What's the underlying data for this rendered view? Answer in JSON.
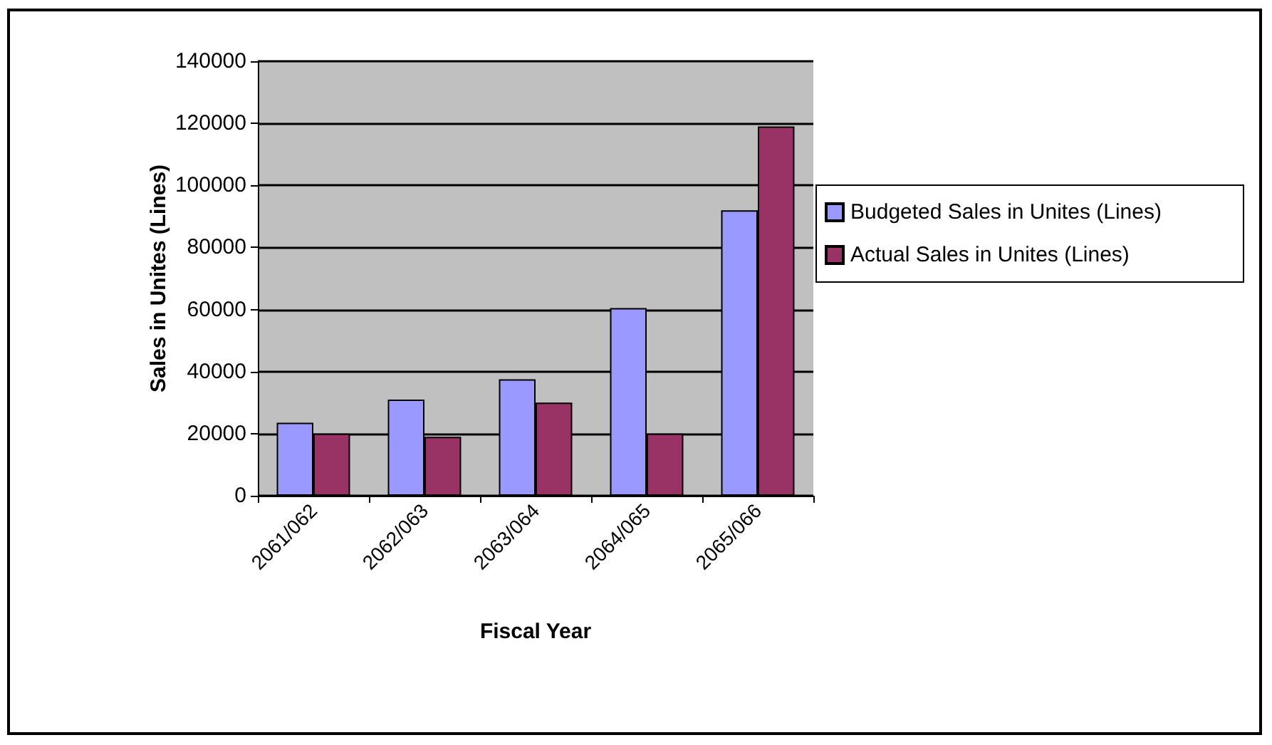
{
  "chart_data": {
    "type": "bar",
    "xlabel": "Fiscal Year",
    "ylabel": "Sales in Unites (Lines)",
    "categories": [
      "2061/062",
      "2062/063",
      "2063/064",
      "2064/065",
      "2065/066"
    ],
    "series": [
      {
        "name": "Budgeted Sales in Unites (Lines)",
        "color": "#9999ff",
        "values": [
          23500,
          31000,
          37500,
          60500,
          92000
        ]
      },
      {
        "name": "Actual Sales in Unites (Lines)",
        "color": "#993366",
        "values": [
          20000,
          19000,
          30000,
          20000,
          119000
        ]
      }
    ],
    "ylim": [
      0,
      140000
    ],
    "yticks": [
      0,
      20000,
      40000,
      60000,
      80000,
      100000,
      120000,
      140000
    ],
    "grid": "y",
    "legend": "right"
  }
}
